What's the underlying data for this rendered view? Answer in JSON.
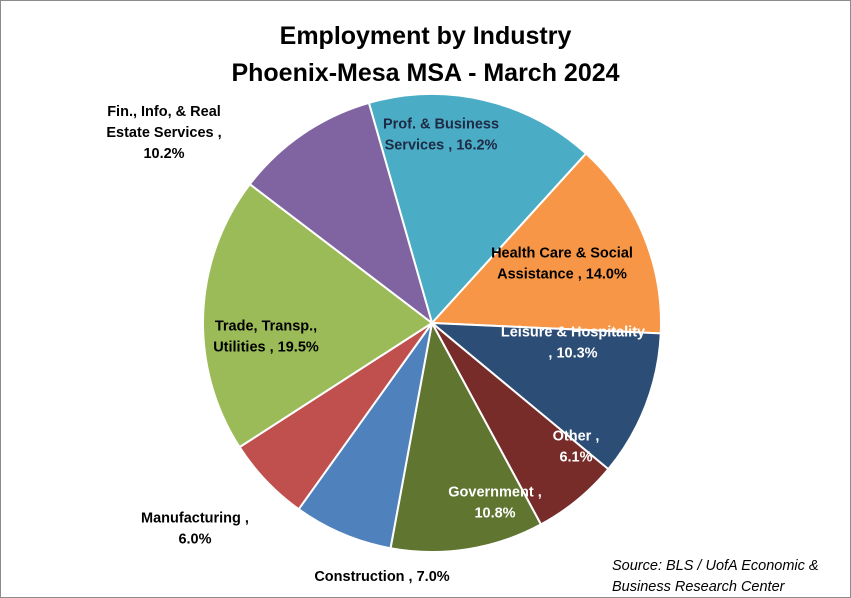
{
  "chart_data": {
    "type": "pie",
    "title_line1": "Employment by Industry",
    "title_line2": "Phoenix-Mesa MSA - March 2024",
    "slices": [
      {
        "label_lines": [
          "Prof. & Business",
          "Services , 16.2%"
        ],
        "value": 16.2,
        "color": "#4bacc6",
        "label_color": "#1f2a44"
      },
      {
        "label_lines": [
          "Health Care & Social",
          "Assistance , 14.0%"
        ],
        "value": 14.0,
        "color": "#f79646",
        "label_color": "#000000"
      },
      {
        "label_lines": [
          "Leisure & Hospitality",
          ", 10.3%"
        ],
        "value": 10.3,
        "color": "#2c4d75",
        "label_color": "#ffffff"
      },
      {
        "label_lines": [
          "Other ,",
          "6.1%"
        ],
        "value": 6.1,
        "color": "#772c2a",
        "label_color": "#ffffff"
      },
      {
        "label_lines": [
          "Government ,",
          "10.8%"
        ],
        "value": 10.8,
        "color": "#5f7530",
        "label_color": "#ffffff"
      },
      {
        "label_lines": [
          "Construction , 7.0%"
        ],
        "value": 7.0,
        "color": "#4f81bd",
        "label_color": "#000000"
      },
      {
        "label_lines": [
          "Manufacturing ,",
          "6.0%"
        ],
        "value": 6.0,
        "color": "#c0504d",
        "label_color": "#000000"
      },
      {
        "label_lines": [
          "Trade, Transp.,",
          "Utilities , 19.5%"
        ],
        "value": 19.5,
        "color": "#9bbb59",
        "label_color": "#000000"
      },
      {
        "label_lines": [
          "Fin., Info, & Real",
          "Estate Services ,",
          "10.2%"
        ],
        "value": 10.2,
        "color": "#8064a2",
        "label_color": "#000000"
      }
    ],
    "source_line1": "Source: BLS / UofA Economic &",
    "source_line2": "Business Research Center"
  }
}
